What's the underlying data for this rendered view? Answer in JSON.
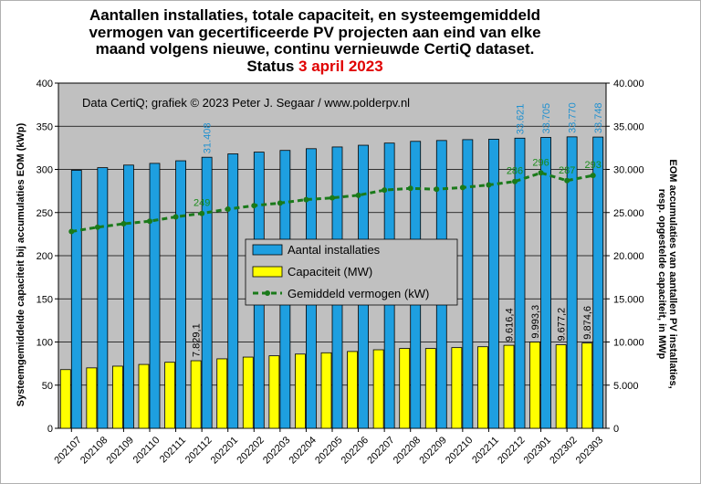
{
  "title": {
    "line1": "Aantallen installaties, totale capaciteit, en systeemgemiddeld",
    "line2": "vermogen van gecertificeerde PV projecten aan eind van elke",
    "line3": "maand volgens nieuwe, continu vernieuwde CertiQ dataset.",
    "status_prefix": "Status ",
    "status_date": "3 april 2023"
  },
  "credit": "Data CertiQ; grafiek © 2023 Peter J. Segaar / www.polderpv.nl",
  "colors": {
    "plot_bg": "#c0c0c0",
    "installaties": "#1e9fe0",
    "capaciteit": "#ffff00",
    "gemiddeld": "#1a7a1a",
    "status_date": "#e00000"
  },
  "chart_data": {
    "type": "bar",
    "ylabel_left": "Systeemgemiddelde capaciteit bij accumulaties EOM (kWp)",
    "ylabel_right_line1": "EOM accumulaties van aantallen PV installaties,",
    "ylabel_right_line2": "resp. opgestelde capaciteit, in MWp",
    "left_axis": {
      "range": [
        0,
        400
      ],
      "ticks": [
        "0",
        "50",
        "100",
        "150",
        "200",
        "250",
        "300",
        "350",
        "400"
      ]
    },
    "right_axis": {
      "range": [
        0,
        40000
      ],
      "ticks": [
        "0",
        "5.000",
        "10.000",
        "15.000",
        "20.000",
        "25.000",
        "30.000",
        "35.000",
        "40.000"
      ]
    },
    "grid": "horizontal",
    "legend_position": "center",
    "categories": [
      "202107",
      "202108",
      "202109",
      "202110",
      "202111",
      "202112",
      "202201",
      "202202",
      "202203",
      "202204",
      "202205",
      "202206",
      "202207",
      "202208",
      "202209",
      "202210",
      "202211",
      "202212",
      "202301",
      "202302",
      "202303"
    ],
    "series": [
      {
        "name": "Aantal installaties",
        "type": "bar",
        "axis": "right",
        "values": [
          29900,
          30200,
          30500,
          30700,
          31000,
          31408,
          31800,
          32000,
          32200,
          32400,
          32600,
          32800,
          33050,
          33250,
          33350,
          33450,
          33500,
          33621,
          33705,
          33770,
          33748
        ],
        "labels": [
          {
            "index": 5,
            "text": "31.408"
          },
          {
            "index": 17,
            "text": "33.621"
          },
          {
            "index": 18,
            "text": "33.705"
          },
          {
            "index": 19,
            "text": "33.770"
          },
          {
            "index": 20,
            "text": "33.748"
          }
        ]
      },
      {
        "name": "Capaciteit (MW)",
        "type": "bar",
        "axis": "right",
        "values": [
          6800,
          7000,
          7200,
          7400,
          7650,
          7829.1,
          8050,
          8250,
          8400,
          8600,
          8750,
          8900,
          9100,
          9250,
          9250,
          9350,
          9450,
          9616.4,
          9993.3,
          9677.2,
          9874.6
        ],
        "labels": [
          {
            "index": 5,
            "text": "7.829,1"
          },
          {
            "index": 17,
            "text": "9.616,4"
          },
          {
            "index": 18,
            "text": "9.993,3"
          },
          {
            "index": 19,
            "text": "9.677,2"
          },
          {
            "index": 20,
            "text": "9.874,6"
          }
        ]
      },
      {
        "name": "Gemiddeld vermogen (kW)",
        "type": "line",
        "axis": "left",
        "values": [
          228,
          233,
          237,
          240,
          245,
          249,
          254,
          258,
          261,
          265,
          267,
          270,
          276,
          278,
          277,
          279,
          282,
          286,
          296,
          287,
          293
        ],
        "labels": [
          {
            "index": 5,
            "text": "249"
          },
          {
            "index": 17,
            "text": "286"
          },
          {
            "index": 18,
            "text": "296"
          },
          {
            "index": 19,
            "text": "287"
          },
          {
            "index": 20,
            "text": "293"
          }
        ]
      }
    ]
  }
}
